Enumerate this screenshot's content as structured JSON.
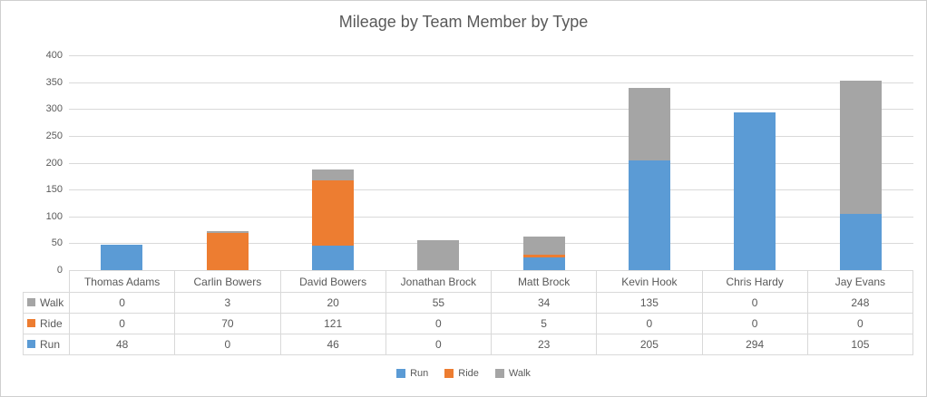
{
  "title": "Mileage by Team Member by Type",
  "chart_data": {
    "type": "bar",
    "stacked": true,
    "title": "Mileage by Team Member by Type",
    "categories": [
      "Thomas Adams",
      "Carlin Bowers",
      "David Bowers",
      "Jonathan Brock",
      "Matt Brock",
      "Kevin Hook",
      "Chris Hardy",
      "Jay Evans"
    ],
    "series": [
      {
        "name": "Run",
        "color": "#5B9BD5",
        "values": [
          48,
          0,
          46,
          0,
          23,
          205,
          294,
          105
        ]
      },
      {
        "name": "Ride",
        "color": "#ED7D31",
        "values": [
          0,
          70,
          121,
          0,
          5,
          0,
          0,
          0
        ]
      },
      {
        "name": "Walk",
        "color": "#A5A5A5",
        "values": [
          0,
          3,
          20,
          55,
          34,
          135,
          0,
          248
        ]
      }
    ],
    "ylim": [
      0,
      400
    ],
    "ytick_step": 50,
    "ytick_labels": [
      "400",
      "350",
      "300",
      "250",
      "200",
      "150",
      "100",
      "50",
      "0"
    ],
    "grid": true,
    "legend_position": "bottom",
    "legend_order": [
      "Run",
      "Ride",
      "Walk"
    ],
    "table_row_order": [
      "Walk",
      "Ride",
      "Run"
    ]
  },
  "colors": {
    "run": "#5B9BD5",
    "ride": "#ED7D31",
    "walk": "#A5A5A5",
    "gridline": "#D9D9D9",
    "table_border": "#D9D9D9",
    "text": "#595959"
  }
}
